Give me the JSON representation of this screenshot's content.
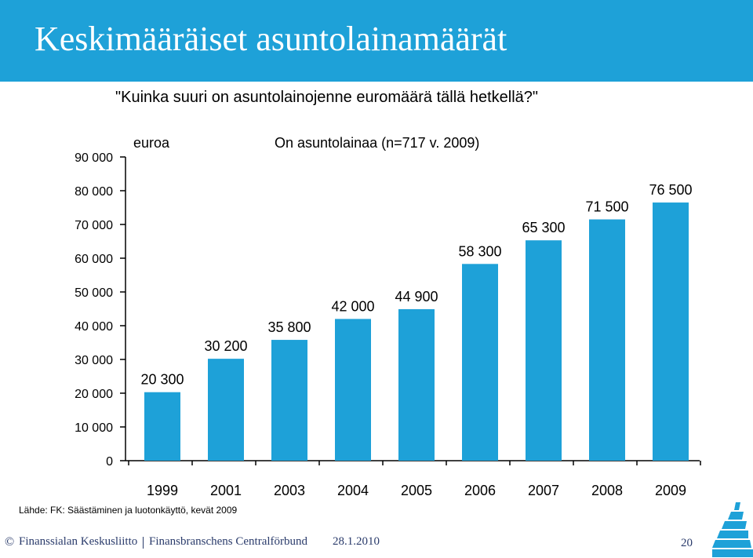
{
  "header": {
    "title": "Keskimääräiset asuntolainamäärät"
  },
  "question": "\"Kuinka suuri on asuntolainojenne euromäärä tällä hetkellä?\"",
  "chart_data": {
    "type": "bar",
    "title": "On asuntolainaa (n=717 v. 2009)",
    "ylabel": "euroa",
    "xlabel": "",
    "categories": [
      "1999",
      "2001",
      "2003",
      "2004",
      "2005",
      "2006",
      "2007",
      "2008",
      "2009"
    ],
    "values": [
      20300,
      30200,
      35800,
      42000,
      44900,
      58300,
      65300,
      71500,
      76500
    ],
    "value_labels": [
      "20 300",
      "30 200",
      "35 800",
      "42 000",
      "44 900",
      "58 300",
      "65 300",
      "71 500",
      "76 500"
    ],
    "ylim": [
      0,
      90000
    ],
    "yticks": [
      0,
      10000,
      20000,
      30000,
      40000,
      50000,
      60000,
      70000,
      80000,
      90000
    ],
    "ytick_labels": [
      "0",
      "10 000",
      "20 000",
      "30 000",
      "40 000",
      "50 000",
      "60 000",
      "70 000",
      "80 000",
      "90 000"
    ],
    "bar_color": "#1ea1d8",
    "grid": false
  },
  "source": "Lähde: FK: Säästäminen ja luotonkäyttö, kevät 2009",
  "footer": {
    "copyright": "©",
    "org_fi": "Finanssialan Keskusliitto",
    "org_sv": "Finansbranschens Centralförbund",
    "date": "28.1.2010",
    "page": "20"
  },
  "colors": {
    "title_bar": "#1ea1d8",
    "footer_text": "#2a3b6b"
  }
}
